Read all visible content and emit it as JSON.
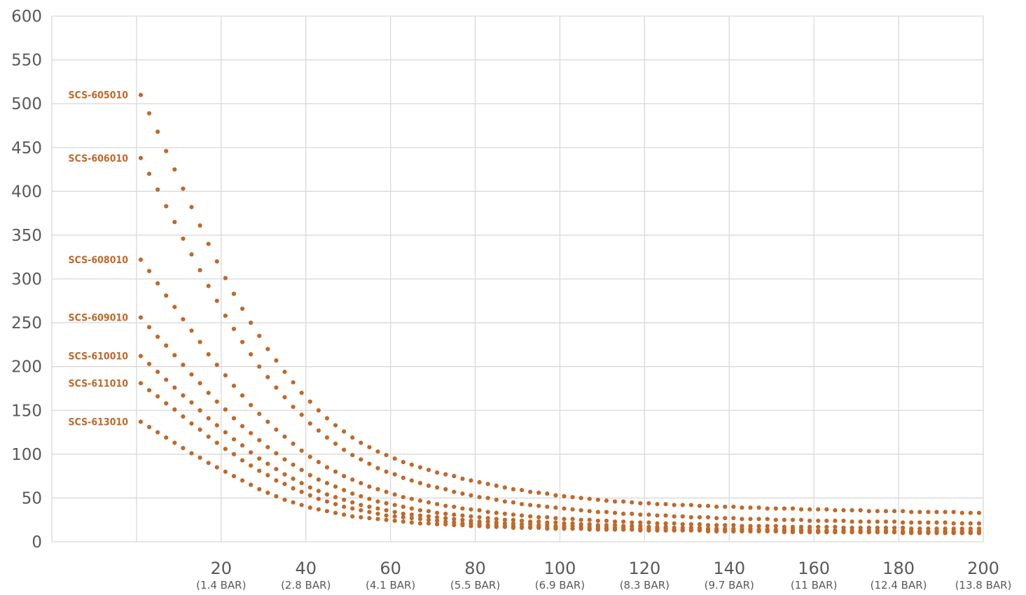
{
  "chart_data": {
    "type": "scatter",
    "title": "",
    "xlabel": "",
    "ylabel": "",
    "xlim": [
      -20,
      200
    ],
    "ylim": [
      0,
      600
    ],
    "grid": true,
    "legend": "none",
    "marker_color": "#c0692a",
    "y_ticks": [
      "0",
      "50",
      "100",
      "150",
      "200",
      "250",
      "300",
      "350",
      "400",
      "450",
      "500",
      "550",
      "600"
    ],
    "x_ticks": [
      {
        "value": 20,
        "label": "20",
        "sublabel": "(1.4 BAR)"
      },
      {
        "value": 40,
        "label": "40",
        "sublabel": "(2.8 BAR)"
      },
      {
        "value": 60,
        "label": "60",
        "sublabel": "(4.1 BAR)"
      },
      {
        "value": 80,
        "label": "80",
        "sublabel": "(5.5 BAR)"
      },
      {
        "value": 100,
        "label": "100",
        "sublabel": "(6.9 BAR)"
      },
      {
        "value": 120,
        "label": "120",
        "sublabel": "(8.3 BAR)"
      },
      {
        "value": 140,
        "label": "140",
        "sublabel": "(9.7 BAR)"
      },
      {
        "value": 160,
        "label": "160",
        "sublabel": "(11 BAR)"
      },
      {
        "value": 180,
        "label": "180",
        "sublabel": "(12.4 BAR)"
      },
      {
        "value": 200,
        "label": "200",
        "sublabel": "(13.8 BAR)"
      }
    ],
    "x": [
      1,
      3,
      5,
      7,
      9,
      11,
      13,
      15,
      17,
      19,
      21,
      23,
      25,
      27,
      29,
      31,
      33,
      35,
      37,
      39,
      41,
      43,
      45,
      47,
      49,
      51,
      53,
      55,
      57,
      59,
      61,
      63,
      65,
      67,
      69,
      71,
      73,
      75,
      77,
      79,
      81,
      83,
      85,
      87,
      89,
      91,
      93,
      95,
      97,
      99,
      101,
      103,
      105,
      107,
      109,
      111,
      113,
      115,
      117,
      119,
      121,
      123,
      125,
      127,
      129,
      131,
      133,
      135,
      137,
      139,
      141,
      143,
      145,
      147,
      149,
      151,
      153,
      155,
      157,
      159,
      161,
      163,
      165,
      167,
      169,
      171,
      173,
      175,
      177,
      179,
      181,
      183,
      185,
      187,
      189,
      191,
      193,
      195,
      197,
      199
    ],
    "series": [
      {
        "name": "SCS-605010",
        "values": [
          510,
          489,
          468,
          446,
          425,
          403,
          382,
          361,
          340,
          320,
          301,
          283,
          266,
          250,
          235,
          220,
          207,
          194,
          182,
          170,
          160,
          150,
          141,
          133,
          126,
          119,
          113,
          108,
          103,
          99,
          95,
          91,
          88,
          85,
          82,
          79,
          77,
          75,
          72,
          70,
          68,
          66,
          64,
          62,
          60,
          59,
          57,
          56,
          55,
          53,
          52,
          51,
          50,
          49,
          48,
          47,
          46,
          46,
          45,
          44,
          44,
          43,
          43,
          42,
          42,
          42,
          41,
          41,
          40,
          40,
          40,
          39,
          39,
          39,
          38,
          38,
          38,
          38,
          37,
          37,
          37,
          37,
          36,
          36,
          36,
          36,
          35,
          35,
          35,
          35,
          35,
          34,
          34,
          34,
          34,
          34,
          34,
          33,
          33,
          33
        ]
      },
      {
        "name": "SCS-606010",
        "values": [
          438,
          420,
          402,
          383,
          365,
          346,
          328,
          310,
          292,
          275,
          258,
          243,
          228,
          214,
          200,
          188,
          176,
          165,
          154,
          145,
          135,
          127,
          119,
          112,
          105,
          99,
          94,
          89,
          84,
          80,
          77,
          73,
          70,
          67,
          64,
          62,
          60,
          57,
          55,
          53,
          51,
          50,
          48,
          46,
          45,
          43,
          42,
          41,
          40,
          39,
          38,
          37,
          36,
          35,
          34,
          34,
          33,
          32,
          32,
          31,
          31,
          30,
          30,
          29,
          29,
          28,
          28,
          28,
          27,
          27,
          27,
          26,
          26,
          26,
          26,
          25,
          25,
          25,
          25,
          24,
          24,
          24,
          24,
          24,
          23,
          23,
          23,
          23,
          23,
          23,
          22,
          22,
          22,
          22,
          22,
          22,
          21,
          21,
          21,
          21
        ]
      },
      {
        "name": "SCS-608010",
        "values": [
          322,
          309,
          295,
          281,
          268,
          254,
          241,
          228,
          214,
          202,
          190,
          178,
          167,
          156,
          146,
          137,
          128,
          120,
          112,
          104,
          97,
          91,
          85,
          80,
          75,
          71,
          67,
          63,
          60,
          57,
          54,
          51,
          49,
          47,
          45,
          43,
          41,
          40,
          38,
          37,
          36,
          34,
          33,
          32,
          31,
          30,
          29,
          28,
          28,
          27,
          26,
          26,
          25,
          25,
          24,
          24,
          23,
          23,
          22,
          22,
          22,
          21,
          21,
          21,
          20,
          20,
          20,
          19,
          19,
          19,
          19,
          18,
          18,
          18,
          18,
          18,
          17,
          17,
          17,
          17,
          17,
          17,
          17,
          16,
          16,
          16,
          16,
          16,
          16,
          16,
          16,
          15,
          15,
          15,
          15,
          15,
          15,
          15,
          15,
          15
        ]
      },
      {
        "name": "SCS-609010",
        "values": [
          256,
          245,
          234,
          224,
          213,
          202,
          191,
          181,
          170,
          160,
          151,
          141,
          132,
          124,
          116,
          108,
          101,
          94,
          88,
          82,
          76,
          71,
          67,
          63,
          59,
          55,
          52,
          49,
          46,
          44,
          42,
          40,
          38,
          36,
          35,
          33,
          32,
          31,
          30,
          29,
          28,
          27,
          26,
          25,
          25,
          24,
          23,
          23,
          22,
          22,
          21,
          21,
          20,
          20,
          19,
          19,
          19,
          18,
          18,
          18,
          17,
          17,
          17,
          16,
          16,
          16,
          16,
          15,
          15,
          15,
          15,
          15,
          15,
          14,
          14,
          14,
          14,
          14,
          14,
          14,
          13,
          13,
          13,
          13,
          13,
          13,
          13,
          13,
          13,
          12,
          12,
          12,
          12,
          12,
          12,
          12,
          12,
          12,
          12,
          12
        ]
      },
      {
        "name": "SCS-610010",
        "values": [
          212,
          203,
          194,
          185,
          176,
          167,
          159,
          150,
          141,
          133,
          125,
          117,
          110,
          102,
          95,
          89,
          83,
          77,
          72,
          67,
          62,
          58,
          54,
          51,
          48,
          45,
          42,
          40,
          38,
          36,
          34,
          32,
          31,
          30,
          29,
          28,
          27,
          26,
          25,
          24,
          23,
          23,
          22,
          21,
          21,
          20,
          20,
          19,
          19,
          18,
          18,
          18,
          17,
          17,
          17,
          16,
          16,
          16,
          15,
          15,
          15,
          15,
          15,
          14,
          14,
          14,
          14,
          14,
          13,
          13,
          13,
          13,
          13,
          13,
          13,
          12,
          12,
          12,
          12,
          12,
          12,
          12,
          12,
          12,
          12,
          11,
          11,
          11,
          11,
          11,
          11,
          11,
          11,
          11,
          11,
          11,
          11,
          11,
          11,
          10
        ]
      },
      {
        "name": "SCS-611010",
        "values": [
          181,
          173,
          166,
          158,
          151,
          143,
          135,
          128,
          120,
          113,
          106,
          100,
          93,
          87,
          81,
          76,
          70,
          66,
          61,
          57,
          53,
          49,
          46,
          43,
          40,
          38,
          36,
          34,
          32,
          30,
          29,
          28,
          27,
          26,
          25,
          24,
          23,
          22,
          21,
          21,
          20,
          19,
          19,
          18,
          18,
          17,
          17,
          17,
          16,
          16,
          16,
          15,
          15,
          15,
          15,
          14,
          14,
          14,
          14,
          14,
          13,
          13,
          13,
          13,
          13,
          13,
          13,
          12,
          12,
          12,
          12,
          12,
          12,
          12,
          12,
          12,
          11,
          11,
          11,
          11,
          11,
          11,
          11,
          11,
          11,
          11,
          11,
          11,
          11,
          11,
          10,
          10,
          10,
          10,
          10,
          10,
          10,
          10,
          10,
          10
        ]
      },
      {
        "name": "SCS-613010",
        "values": [
          137,
          131,
          125,
          119,
          113,
          107,
          101,
          96,
          90,
          85,
          80,
          75,
          70,
          65,
          60,
          56,
          52,
          48,
          45,
          42,
          39,
          37,
          35,
          33,
          31,
          29,
          28,
          27,
          26,
          25,
          24,
          23,
          22,
          21,
          21,
          20,
          20,
          19,
          19,
          18,
          18,
          17,
          17,
          17,
          16,
          16,
          16,
          16,
          15,
          15,
          15,
          15,
          15,
          14,
          14,
          14,
          14,
          14,
          14,
          13,
          13,
          13,
          13,
          13,
          13,
          13,
          13,
          12,
          12,
          12,
          12,
          12,
          12,
          12,
          12,
          12,
          12,
          12,
          12,
          11,
          11,
          11,
          11,
          11,
          11,
          11,
          11,
          11,
          11,
          11,
          11,
          11,
          11,
          11,
          11,
          10,
          10,
          10,
          10,
          10
        ]
      }
    ]
  }
}
